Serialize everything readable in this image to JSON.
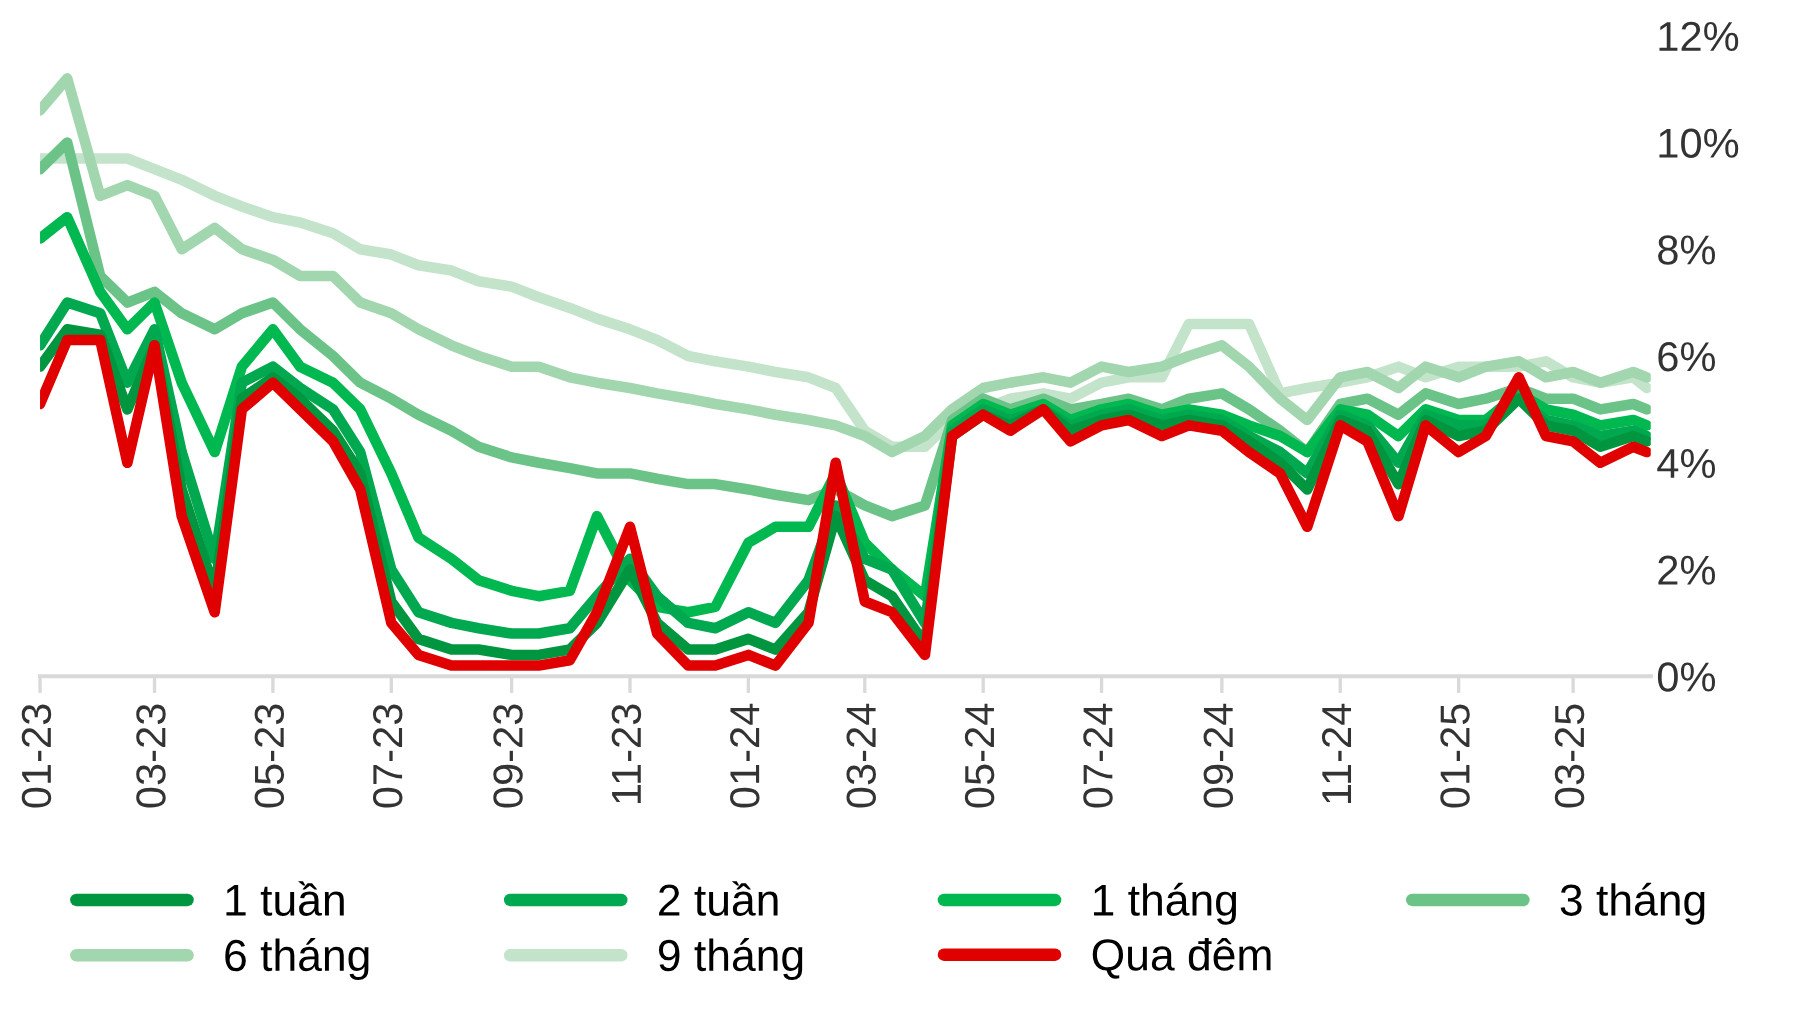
{
  "chart_data": {
    "type": "line",
    "x": [
      "2023-01-01",
      "2023-01-15",
      "2023-02-01",
      "2023-02-15",
      "2023-03-01",
      "2023-03-15",
      "2023-04-01",
      "2023-04-15",
      "2023-05-01",
      "2023-05-15",
      "2023-06-01",
      "2023-06-15",
      "2023-07-01",
      "2023-07-15",
      "2023-08-01",
      "2023-08-15",
      "2023-09-01",
      "2023-09-15",
      "2023-10-01",
      "2023-10-15",
      "2023-11-01",
      "2023-11-15",
      "2023-12-01",
      "2023-12-15",
      "2024-01-01",
      "2024-01-15",
      "2024-02-01",
      "2024-02-15",
      "2024-03-01",
      "2024-03-15",
      "2024-04-01",
      "2024-04-15",
      "2024-05-01",
      "2024-05-15",
      "2024-06-01",
      "2024-06-15",
      "2024-07-01",
      "2024-07-15",
      "2024-08-01",
      "2024-08-15",
      "2024-09-01",
      "2024-09-15",
      "2024-10-01",
      "2024-10-15",
      "2024-11-01",
      "2024-11-15",
      "2024-12-01",
      "2024-12-15",
      "2025-01-01",
      "2025-01-15",
      "2025-02-01",
      "2025-02-15",
      "2025-03-01",
      "2025-03-15",
      "2025-04-01",
      "2025-04-08"
    ],
    "series": [
      {
        "name": "1 tuần",
        "color": "#00963f",
        "values": [
          5.8,
          6.5,
          6.4,
          5.0,
          6.2,
          3.5,
          1.6,
          5.2,
          5.6,
          5.2,
          4.6,
          3.8,
          1.4,
          0.7,
          0.5,
          0.5,
          0.4,
          0.4,
          0.5,
          1.0,
          2.0,
          1.0,
          0.5,
          0.5,
          0.7,
          0.5,
          1.2,
          3.0,
          1.8,
          1.5,
          0.6,
          4.5,
          4.9,
          4.7,
          5.0,
          4.6,
          4.8,
          4.9,
          4.7,
          4.8,
          4.7,
          4.4,
          4.0,
          3.5,
          4.8,
          4.6,
          3.6,
          4.8,
          4.5,
          4.6,
          5.2,
          4.7,
          4.6,
          4.3,
          4.5,
          4.4
        ]
      },
      {
        "name": "2 tuần",
        "color": "#00a84f",
        "values": [
          6.2,
          7.0,
          6.8,
          5.5,
          6.5,
          4.2,
          2.2,
          5.5,
          5.8,
          5.4,
          5.0,
          4.2,
          2.0,
          1.2,
          1.0,
          0.9,
          0.8,
          0.8,
          0.9,
          1.5,
          2.2,
          1.5,
          1.0,
          0.9,
          1.2,
          1.0,
          1.8,
          3.2,
          2.2,
          2.0,
          1.0,
          4.6,
          5.0,
          4.8,
          5.0,
          4.7,
          4.9,
          5.0,
          4.8,
          4.9,
          4.8,
          4.5,
          4.2,
          3.8,
          4.9,
          4.7,
          4.0,
          4.9,
          4.7,
          4.7,
          5.2,
          4.8,
          4.7,
          4.5,
          4.6,
          4.5
        ]
      },
      {
        "name": "1 tháng",
        "color": "#00b850",
        "values": [
          8.2,
          8.6,
          7.2,
          6.5,
          7.0,
          5.5,
          4.2,
          5.8,
          6.5,
          5.8,
          5.5,
          5.0,
          3.8,
          2.6,
          2.2,
          1.8,
          1.6,
          1.5,
          1.6,
          3.0,
          1.8,
          1.3,
          1.2,
          1.3,
          2.5,
          2.8,
          2.8,
          3.8,
          2.5,
          2.0,
          1.5,
          4.7,
          5.1,
          4.9,
          5.1,
          4.8,
          5.0,
          5.1,
          4.9,
          5.0,
          4.9,
          4.7,
          4.5,
          4.2,
          5.0,
          4.9,
          4.5,
          5.0,
          4.8,
          4.8,
          5.3,
          5.0,
          4.9,
          4.7,
          4.8,
          4.7
        ]
      },
      {
        "name": "3 tháng",
        "color": "#6cc388",
        "values": [
          9.5,
          10.0,
          7.5,
          7.0,
          7.2,
          6.8,
          6.5,
          6.8,
          7.0,
          6.5,
          6.0,
          5.5,
          5.2,
          4.9,
          4.6,
          4.3,
          4.1,
          4.0,
          3.9,
          3.8,
          3.8,
          3.7,
          3.6,
          3.6,
          3.5,
          3.4,
          3.3,
          3.5,
          3.2,
          3.0,
          3.2,
          4.8,
          5.2,
          5.0,
          5.2,
          5.0,
          5.1,
          5.2,
          5.0,
          5.2,
          5.3,
          5.0,
          4.6,
          4.2,
          5.1,
          5.2,
          4.9,
          5.3,
          5.1,
          5.2,
          5.4,
          5.2,
          5.2,
          5.0,
          5.1,
          5.0
        ]
      },
      {
        "name": "6 tháng",
        "color": "#a2d6ae",
        "values": [
          10.6,
          11.2,
          9.0,
          9.2,
          9.0,
          8.0,
          8.4,
          8.0,
          7.8,
          7.5,
          7.5,
          7.0,
          6.8,
          6.5,
          6.2,
          6.0,
          5.8,
          5.8,
          5.6,
          5.5,
          5.4,
          5.3,
          5.2,
          5.1,
          5.0,
          4.9,
          4.8,
          4.7,
          4.5,
          4.2,
          4.5,
          5.0,
          5.4,
          5.5,
          5.6,
          5.5,
          5.8,
          5.7,
          5.8,
          6.0,
          6.2,
          5.8,
          5.2,
          4.8,
          5.6,
          5.7,
          5.4,
          5.8,
          5.6,
          5.8,
          5.9,
          5.6,
          5.7,
          5.5,
          5.7,
          5.6
        ]
      },
      {
        "name": "9 tháng",
        "color": "#c3e4ca",
        "values": [
          9.7,
          9.7,
          9.7,
          9.7,
          9.5,
          9.3,
          9.0,
          8.8,
          8.6,
          8.5,
          8.3,
          8.0,
          7.9,
          7.7,
          7.6,
          7.4,
          7.3,
          7.1,
          6.9,
          6.7,
          6.5,
          6.3,
          6.0,
          5.9,
          5.8,
          5.7,
          5.6,
          5.4,
          4.6,
          4.3,
          4.3,
          4.8,
          5.0,
          5.2,
          5.3,
          5.2,
          5.5,
          5.6,
          5.6,
          6.6,
          6.6,
          6.6,
          5.3,
          5.4,
          5.5,
          5.6,
          5.8,
          5.6,
          5.8,
          5.8,
          5.8,
          5.9,
          5.6,
          5.5,
          5.6,
          5.4
        ]
      },
      {
        "name": "Qua đêm",
        "color": "#e00000",
        "values": [
          5.1,
          6.3,
          6.3,
          4.0,
          6.2,
          3.0,
          1.2,
          5.0,
          5.5,
          5.0,
          4.4,
          3.5,
          1.0,
          0.4,
          0.2,
          0.2,
          0.2,
          0.2,
          0.3,
          1.2,
          2.8,
          0.8,
          0.2,
          0.2,
          0.4,
          0.2,
          1.0,
          4.0,
          1.4,
          1.2,
          0.4,
          4.5,
          4.9,
          4.6,
          5.0,
          4.4,
          4.7,
          4.8,
          4.5,
          4.7,
          4.6,
          4.2,
          3.8,
          2.8,
          4.7,
          4.4,
          3.0,
          4.7,
          4.2,
          4.5,
          5.6,
          4.5,
          4.4,
          4.0,
          4.3,
          4.2
        ]
      }
    ],
    "xlim": [
      "2023-01-01",
      "2025-04-10"
    ],
    "xticks": [
      {
        "value": "2023-01-01",
        "label": "01-23"
      },
      {
        "value": "2023-03-01",
        "label": "03-23"
      },
      {
        "value": "2023-05-01",
        "label": "05-23"
      },
      {
        "value": "2023-07-01",
        "label": "07-23"
      },
      {
        "value": "2023-09-01",
        "label": "09-23"
      },
      {
        "value": "2023-11-01",
        "label": "11-23"
      },
      {
        "value": "2024-01-01",
        "label": "01-24"
      },
      {
        "value": "2024-03-01",
        "label": "03-24"
      },
      {
        "value": "2024-05-01",
        "label": "05-24"
      },
      {
        "value": "2024-07-01",
        "label": "07-24"
      },
      {
        "value": "2024-09-01",
        "label": "09-24"
      },
      {
        "value": "2024-11-01",
        "label": "11-24"
      },
      {
        "value": "2025-01-01",
        "label": "01-25"
      },
      {
        "value": "2025-03-01",
        "label": "03-25"
      }
    ],
    "ylim": [
      0,
      12
    ],
    "yticks": [
      {
        "value": 0,
        "label": "0%"
      },
      {
        "value": 2,
        "label": "2%"
      },
      {
        "value": 4,
        "label": "4%"
      },
      {
        "value": 6,
        "label": "6%"
      },
      {
        "value": 8,
        "label": "8%"
      },
      {
        "value": 10,
        "label": "10%"
      },
      {
        "value": 12,
        "label": "12%"
      }
    ],
    "grid": false,
    "legend": "bottom",
    "marker": "none",
    "line_style": "solid"
  }
}
